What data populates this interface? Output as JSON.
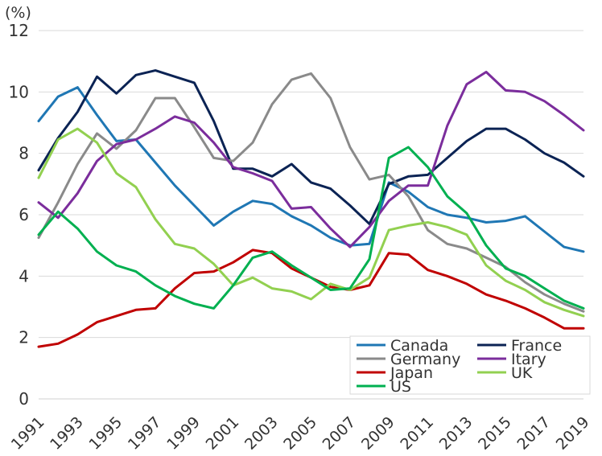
{
  "chart_data": {
    "type": "line",
    "title": "",
    "xlabel": "",
    "ylabel": "(%)",
    "ylim": [
      0,
      12
    ],
    "yticks": [
      0,
      2,
      4,
      6,
      8,
      10,
      12
    ],
    "xlim": [
      1991,
      2019
    ],
    "xticks": [
      "1991",
      "1993",
      "1995",
      "1997",
      "1999",
      "2001",
      "2003",
      "2005",
      "2007",
      "2009",
      "2011",
      "2013",
      "2015",
      "2017",
      "2019"
    ],
    "grid": true,
    "legend_position": "bottom-right",
    "x": [
      1991,
      1992,
      1993,
      1994,
      1995,
      1996,
      1997,
      1998,
      1999,
      2000,
      2001,
      2002,
      2003,
      2004,
      2005,
      2006,
      2007,
      2008,
      2009,
      2010,
      2011,
      2012,
      2013,
      2014,
      2015,
      2016,
      2017,
      2018,
      2019
    ],
    "series": [
      {
        "name": "Canada",
        "color": "#1f77b4",
        "values": [
          9.05,
          9.85,
          10.15,
          9.25,
          8.4,
          8.45,
          7.7,
          6.95,
          6.3,
          5.65,
          6.1,
          6.45,
          6.35,
          5.95,
          5.65,
          5.25,
          5.0,
          5.05,
          7.05,
          6.75,
          6.25,
          6.0,
          5.9,
          5.75,
          5.8,
          5.95,
          5.45,
          4.95,
          4.8
        ]
      },
      {
        "name": "France",
        "color": "#0b2354",
        "values": [
          7.45,
          8.5,
          9.35,
          10.5,
          9.95,
          10.55,
          10.7,
          10.5,
          10.3,
          9.05,
          7.5,
          7.5,
          7.25,
          7.65,
          7.05,
          6.85,
          6.3,
          5.7,
          7.0,
          7.25,
          7.3,
          7.85,
          8.4,
          8.8,
          8.8,
          8.45,
          8.0,
          7.7,
          7.25
        ]
      },
      {
        "name": "Germany",
        "color": "#8a8a8a",
        "values": [
          5.25,
          6.4,
          7.65,
          8.65,
          8.15,
          8.75,
          9.8,
          9.8,
          8.85,
          7.85,
          7.75,
          8.35,
          9.6,
          10.4,
          10.6,
          9.8,
          8.2,
          7.15,
          7.3,
          6.6,
          5.5,
          5.05,
          4.9,
          4.6,
          4.3,
          3.8,
          3.4,
          3.1,
          2.85
        ]
      },
      {
        "name": "Itary",
        "color": "#7b2d9c",
        "values": [
          6.4,
          5.9,
          6.7,
          7.75,
          8.3,
          8.45,
          8.8,
          9.2,
          9.0,
          8.35,
          7.55,
          7.35,
          7.1,
          6.2,
          6.25,
          5.55,
          4.95,
          5.6,
          6.45,
          6.95,
          6.95,
          8.9,
          10.25,
          10.65,
          10.05,
          10.0,
          9.7,
          9.25,
          8.75
        ]
      },
      {
        "name": "Japan",
        "color": "#c00000",
        "values": [
          1.7,
          1.8,
          2.1,
          2.5,
          2.7,
          2.9,
          2.95,
          3.6,
          4.1,
          4.15,
          4.45,
          4.85,
          4.75,
          4.25,
          3.95,
          3.65,
          3.55,
          3.7,
          4.75,
          4.7,
          4.2,
          4.0,
          3.75,
          3.4,
          3.2,
          2.95,
          2.65,
          2.3,
          2.3
        ]
      },
      {
        "name": "UK",
        "color": "#92d050",
        "values": [
          7.2,
          8.45,
          8.8,
          8.35,
          7.35,
          6.9,
          5.85,
          5.05,
          4.9,
          4.4,
          3.7,
          3.95,
          3.6,
          3.5,
          3.25,
          3.75,
          3.55,
          3.95,
          5.5,
          5.65,
          5.75,
          5.6,
          5.35,
          4.35,
          3.85,
          3.55,
          3.15,
          2.9,
          2.7
        ]
      },
      {
        "name": "US",
        "color": "#00b050",
        "values": [
          5.35,
          6.1,
          5.55,
          4.8,
          4.35,
          4.15,
          3.7,
          3.35,
          3.1,
          2.95,
          3.7,
          4.6,
          4.8,
          4.35,
          3.95,
          3.55,
          3.6,
          4.55,
          7.85,
          8.2,
          7.55,
          6.6,
          6.05,
          5.0,
          4.25,
          4.0,
          3.6,
          3.2,
          2.95
        ]
      }
    ],
    "legend": [
      {
        "label": "Canada",
        "series": 0
      },
      {
        "label": "France",
        "series": 1
      },
      {
        "label": "Germany",
        "series": 2
      },
      {
        "label": "Itary",
        "series": 3
      },
      {
        "label": "Japan",
        "series": 4
      },
      {
        "label": "UK",
        "series": 5
      },
      {
        "label": "US",
        "series": 6
      }
    ]
  }
}
